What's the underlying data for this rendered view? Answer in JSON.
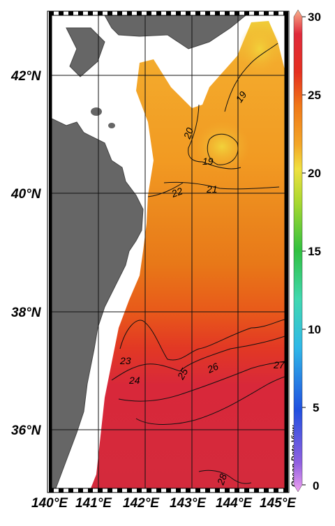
{
  "map": {
    "lat_labels": [
      "42°N",
      "40°N",
      "38°N",
      "36°N"
    ],
    "lon_labels": [
      "140°E",
      "141°E",
      "142°E",
      "143°E",
      "144°E",
      "145°E"
    ],
    "contour_labels": [
      "19",
      "20",
      "19",
      "21",
      "22",
      "23",
      "24",
      "25",
      "26",
      "27",
      "28"
    ],
    "credit": "Ocean Data View",
    "land_color": "#666666",
    "no_data_color": "#ffffff"
  },
  "colorbar": {
    "ticks": [
      "30",
      "25",
      "20",
      "15",
      "10",
      "5",
      "0"
    ],
    "range": [
      0,
      30
    ]
  }
}
